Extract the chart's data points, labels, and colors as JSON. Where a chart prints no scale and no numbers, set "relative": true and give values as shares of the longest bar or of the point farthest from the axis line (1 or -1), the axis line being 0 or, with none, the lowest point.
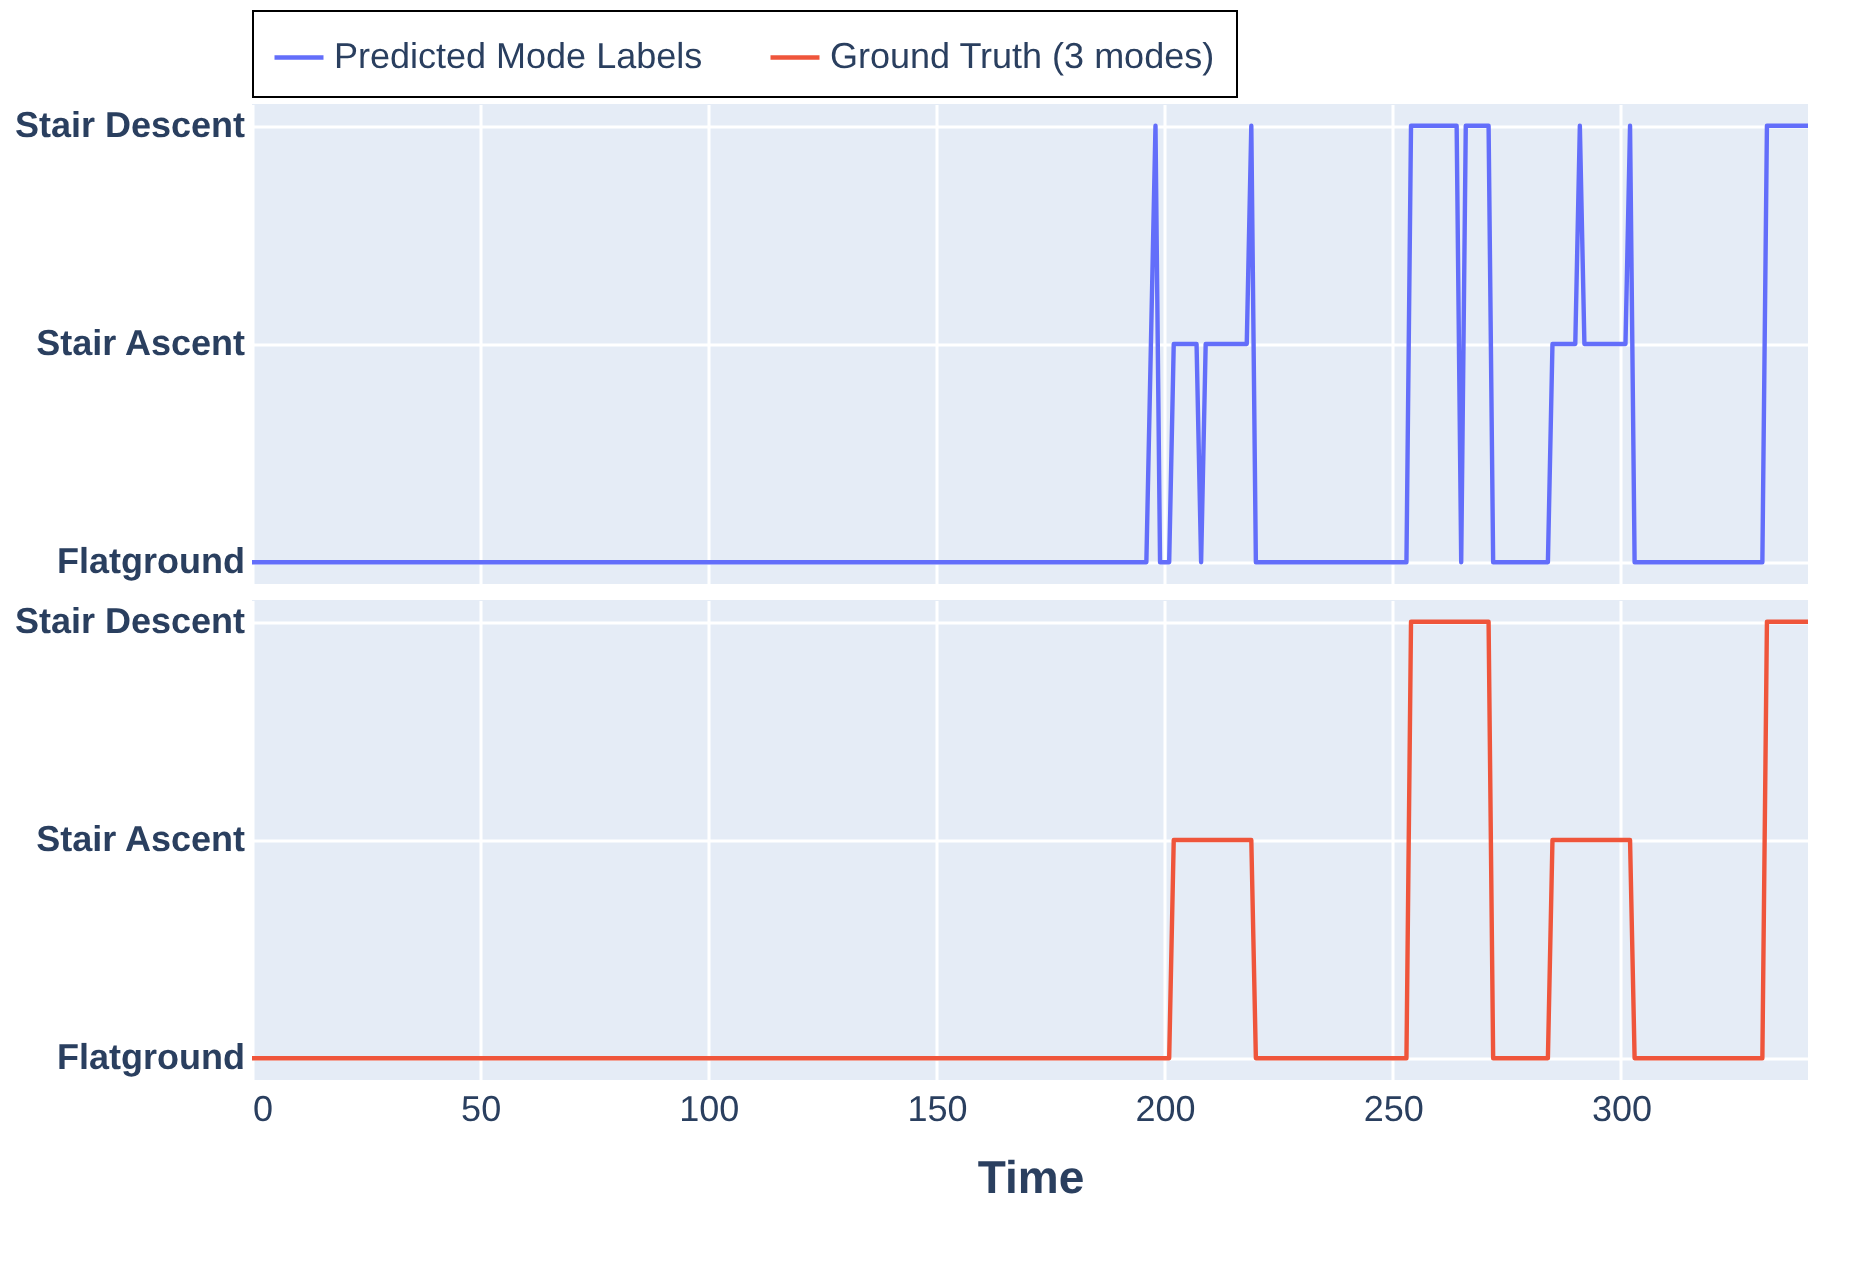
{
  "chart_data": [
    {
      "type": "line",
      "legend": "top",
      "grid": true,
      "tick_labels": "y",
      "line_style": "solid",
      "relative": true,
      "xlim": [
        0,
        341
      ],
      "y_categories": [
        "Stair Descent",
        "Stair Ascent",
        "Flatground"
      ],
      "series": [
        {
          "name": "Predicted Mode Labels",
          "color": "#636efa",
          "x": [
            0,
            196,
            198,
            199,
            201,
            202,
            207,
            208,
            209,
            218,
            219,
            220,
            253,
            254,
            264,
            265,
            266,
            271,
            272,
            284,
            285,
            290,
            291,
            292,
            301,
            302,
            303,
            331,
            332,
            341
          ],
          "values": [
            0,
            0,
            1,
            0,
            0,
            0.5,
            0.5,
            0,
            0.5,
            0.5,
            1,
            0,
            0,
            1,
            1,
            0,
            1,
            1,
            0,
            0,
            0.5,
            0.5,
            1,
            0.5,
            0.5,
            1,
            0,
            0,
            1,
            1
          ]
        }
      ]
    },
    {
      "type": "line",
      "grid": true,
      "xlabel": "Time",
      "line_style": "solid",
      "relative": true,
      "xlim": [
        0,
        341
      ],
      "xticks": [
        0,
        50,
        100,
        150,
        200,
        250,
        300
      ],
      "y_categories": [
        "Stair Descent",
        "Stair Ascent",
        "Flatground"
      ],
      "series": [
        {
          "name": "Ground Truth (3 modes)",
          "color": "#ef553b",
          "x": [
            0,
            201,
            202,
            219,
            220,
            253,
            254,
            271,
            272,
            284,
            285,
            302,
            303,
            331,
            332,
            341
          ],
          "values": [
            0,
            0,
            0.5,
            0.5,
            0,
            0,
            1,
            1,
            0,
            0,
            0.5,
            0.5,
            0,
            0,
            1,
            1
          ]
        }
      ]
    }
  ]
}
